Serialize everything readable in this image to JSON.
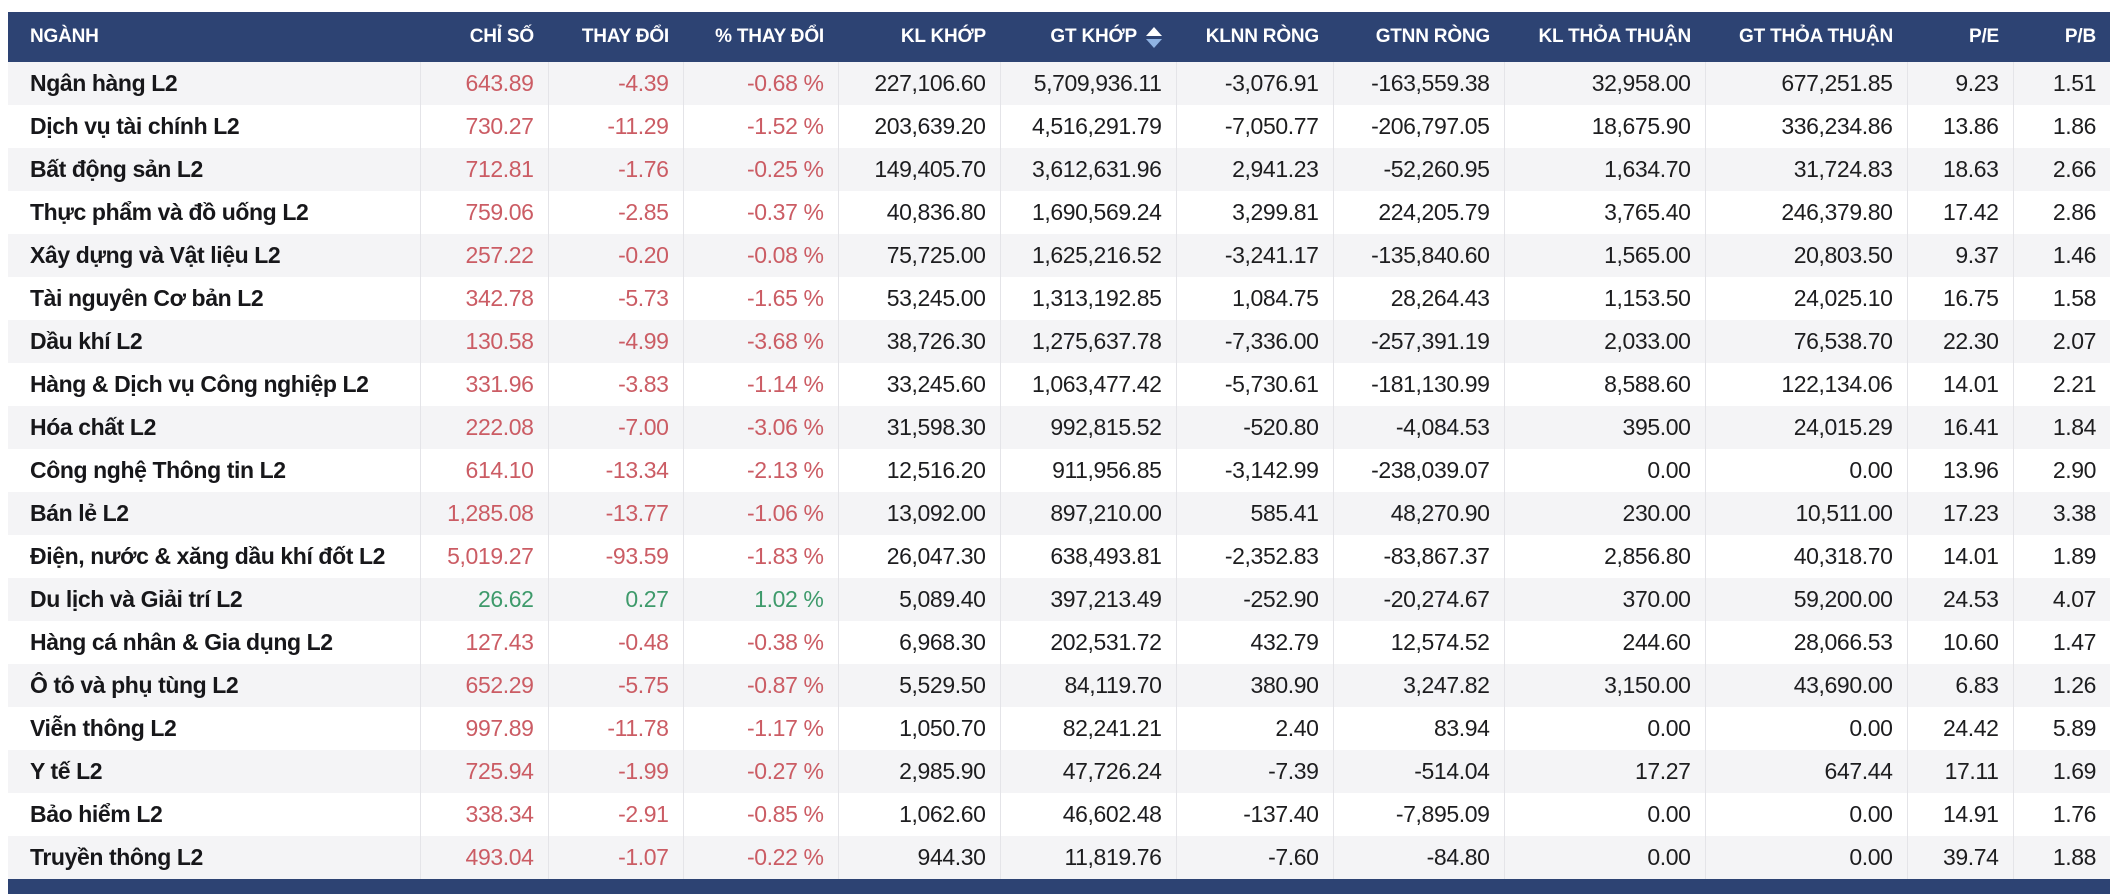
{
  "colors": {
    "header_bg": "#2d4373",
    "negative": "#cb5c64",
    "positive": "#3e9a6b",
    "row_alt_bg": "#f4f4f6"
  },
  "table": {
    "sort": {
      "column": "GT KHỚP",
      "direction": "desc"
    },
    "columns": [
      {
        "key": "nganh",
        "label": "NGÀNH"
      },
      {
        "key": "chi-so",
        "label": "CHỈ SỐ"
      },
      {
        "key": "thay-doi",
        "label": "THAY ĐỔI"
      },
      {
        "key": "pct-thay-doi",
        "label": "% THAY ĐỔI"
      },
      {
        "key": "kl-khop",
        "label": "KL KHỚP"
      },
      {
        "key": "gt-khop",
        "label": "GT KHỚP"
      },
      {
        "key": "klnn-rong",
        "label": "KLNN RÒNG"
      },
      {
        "key": "gtnn-rong",
        "label": "GTNN RÒNG"
      },
      {
        "key": "kl-thoa-thuan",
        "label": "KL THỎA THUẬN"
      },
      {
        "key": "gt-thoa-thuan",
        "label": "GT THỎA THUẬN"
      },
      {
        "key": "pe",
        "label": "P/E"
      },
      {
        "key": "pb",
        "label": "P/B"
      }
    ],
    "rows": [
      {
        "trend": "down",
        "cells": [
          "Ngân hàng L2",
          "643.89",
          "-4.39",
          "-0.68 %",
          "227,106.60",
          "5,709,936.11",
          "-3,076.91",
          "-163,559.38",
          "32,958.00",
          "677,251.85",
          "9.23",
          "1.51"
        ]
      },
      {
        "trend": "down",
        "cells": [
          "Dịch vụ tài chính L2",
          "730.27",
          "-11.29",
          "-1.52 %",
          "203,639.20",
          "4,516,291.79",
          "-7,050.77",
          "-206,797.05",
          "18,675.90",
          "336,234.86",
          "13.86",
          "1.86"
        ]
      },
      {
        "trend": "down",
        "cells": [
          "Bất động sản L2",
          "712.81",
          "-1.76",
          "-0.25 %",
          "149,405.70",
          "3,612,631.96",
          "2,941.23",
          "-52,260.95",
          "1,634.70",
          "31,724.83",
          "18.63",
          "2.66"
        ]
      },
      {
        "trend": "down",
        "cells": [
          "Thực phẩm và đồ uống L2",
          "759.06",
          "-2.85",
          "-0.37 %",
          "40,836.80",
          "1,690,569.24",
          "3,299.81",
          "224,205.79",
          "3,765.40",
          "246,379.80",
          "17.42",
          "2.86"
        ]
      },
      {
        "trend": "down",
        "cells": [
          "Xây dựng và Vật liệu L2",
          "257.22",
          "-0.20",
          "-0.08 %",
          "75,725.00",
          "1,625,216.52",
          "-3,241.17",
          "-135,840.60",
          "1,565.00",
          "20,803.50",
          "9.37",
          "1.46"
        ]
      },
      {
        "trend": "down",
        "cells": [
          "Tài nguyên Cơ bản L2",
          "342.78",
          "-5.73",
          "-1.65 %",
          "53,245.00",
          "1,313,192.85",
          "1,084.75",
          "28,264.43",
          "1,153.50",
          "24,025.10",
          "16.75",
          "1.58"
        ]
      },
      {
        "trend": "down",
        "cells": [
          "Dầu khí L2",
          "130.58",
          "-4.99",
          "-3.68 %",
          "38,726.30",
          "1,275,637.78",
          "-7,336.00",
          "-257,391.19",
          "2,033.00",
          "76,538.70",
          "22.30",
          "2.07"
        ]
      },
      {
        "trend": "down",
        "cells": [
          "Hàng & Dịch vụ Công nghiệp L2",
          "331.96",
          "-3.83",
          "-1.14 %",
          "33,245.60",
          "1,063,477.42",
          "-5,730.61",
          "-181,130.99",
          "8,588.60",
          "122,134.06",
          "14.01",
          "2.21"
        ]
      },
      {
        "trend": "down",
        "cells": [
          "Hóa chất L2",
          "222.08",
          "-7.00",
          "-3.06 %",
          "31,598.30",
          "992,815.52",
          "-520.80",
          "-4,084.53",
          "395.00",
          "24,015.29",
          "16.41",
          "1.84"
        ]
      },
      {
        "trend": "down",
        "cells": [
          "Công nghệ Thông tin L2",
          "614.10",
          "-13.34",
          "-2.13 %",
          "12,516.20",
          "911,956.85",
          "-3,142.99",
          "-238,039.07",
          "0.00",
          "0.00",
          "13.96",
          "2.90"
        ]
      },
      {
        "trend": "down",
        "cells": [
          "Bán lẻ L2",
          "1,285.08",
          "-13.77",
          "-1.06 %",
          "13,092.00",
          "897,210.00",
          "585.41",
          "48,270.90",
          "230.00",
          "10,511.00",
          "17.23",
          "3.38"
        ]
      },
      {
        "trend": "down",
        "cells": [
          "Điện, nước & xăng dầu khí đốt L2",
          "5,019.27",
          "-93.59",
          "-1.83 %",
          "26,047.30",
          "638,493.81",
          "-2,352.83",
          "-83,867.37",
          "2,856.80",
          "40,318.70",
          "14.01",
          "1.89"
        ]
      },
      {
        "trend": "up",
        "cells": [
          "Du lịch và Giải trí L2",
          "26.62",
          "0.27",
          "1.02 %",
          "5,089.40",
          "397,213.49",
          "-252.90",
          "-20,274.67",
          "370.00",
          "59,200.00",
          "24.53",
          "4.07"
        ]
      },
      {
        "trend": "down",
        "cells": [
          "Hàng cá nhân & Gia dụng L2",
          "127.43",
          "-0.48",
          "-0.38 %",
          "6,968.30",
          "202,531.72",
          "432.79",
          "12,574.52",
          "244.60",
          "28,066.53",
          "10.60",
          "1.47"
        ]
      },
      {
        "trend": "down",
        "cells": [
          "Ô tô và phụ tùng L2",
          "652.29",
          "-5.75",
          "-0.87 %",
          "5,529.50",
          "84,119.70",
          "380.90",
          "3,247.82",
          "3,150.00",
          "43,690.00",
          "6.83",
          "1.26"
        ]
      },
      {
        "trend": "down",
        "cells": [
          "Viễn thông L2",
          "997.89",
          "-11.78",
          "-1.17 %",
          "1,050.70",
          "82,241.21",
          "2.40",
          "83.94",
          "0.00",
          "0.00",
          "24.42",
          "5.89"
        ]
      },
      {
        "trend": "down",
        "cells": [
          "Y tế L2",
          "725.94",
          "-1.99",
          "-0.27 %",
          "2,985.90",
          "47,726.24",
          "-7.39",
          "-514.04",
          "17.27",
          "647.44",
          "17.11",
          "1.69"
        ]
      },
      {
        "trend": "down",
        "cells": [
          "Bảo hiểm L2",
          "338.34",
          "-2.91",
          "-0.85 %",
          "1,062.60",
          "46,602.48",
          "-137.40",
          "-7,895.09",
          "0.00",
          "0.00",
          "14.91",
          "1.76"
        ]
      },
      {
        "trend": "down",
        "cells": [
          "Truyền thông L2",
          "493.04",
          "-1.07",
          "-0.22 %",
          "944.30",
          "11,819.76",
          "-7.60",
          "-84.80",
          "0.00",
          "0.00",
          "39.74",
          "1.88"
        ]
      }
    ]
  }
}
